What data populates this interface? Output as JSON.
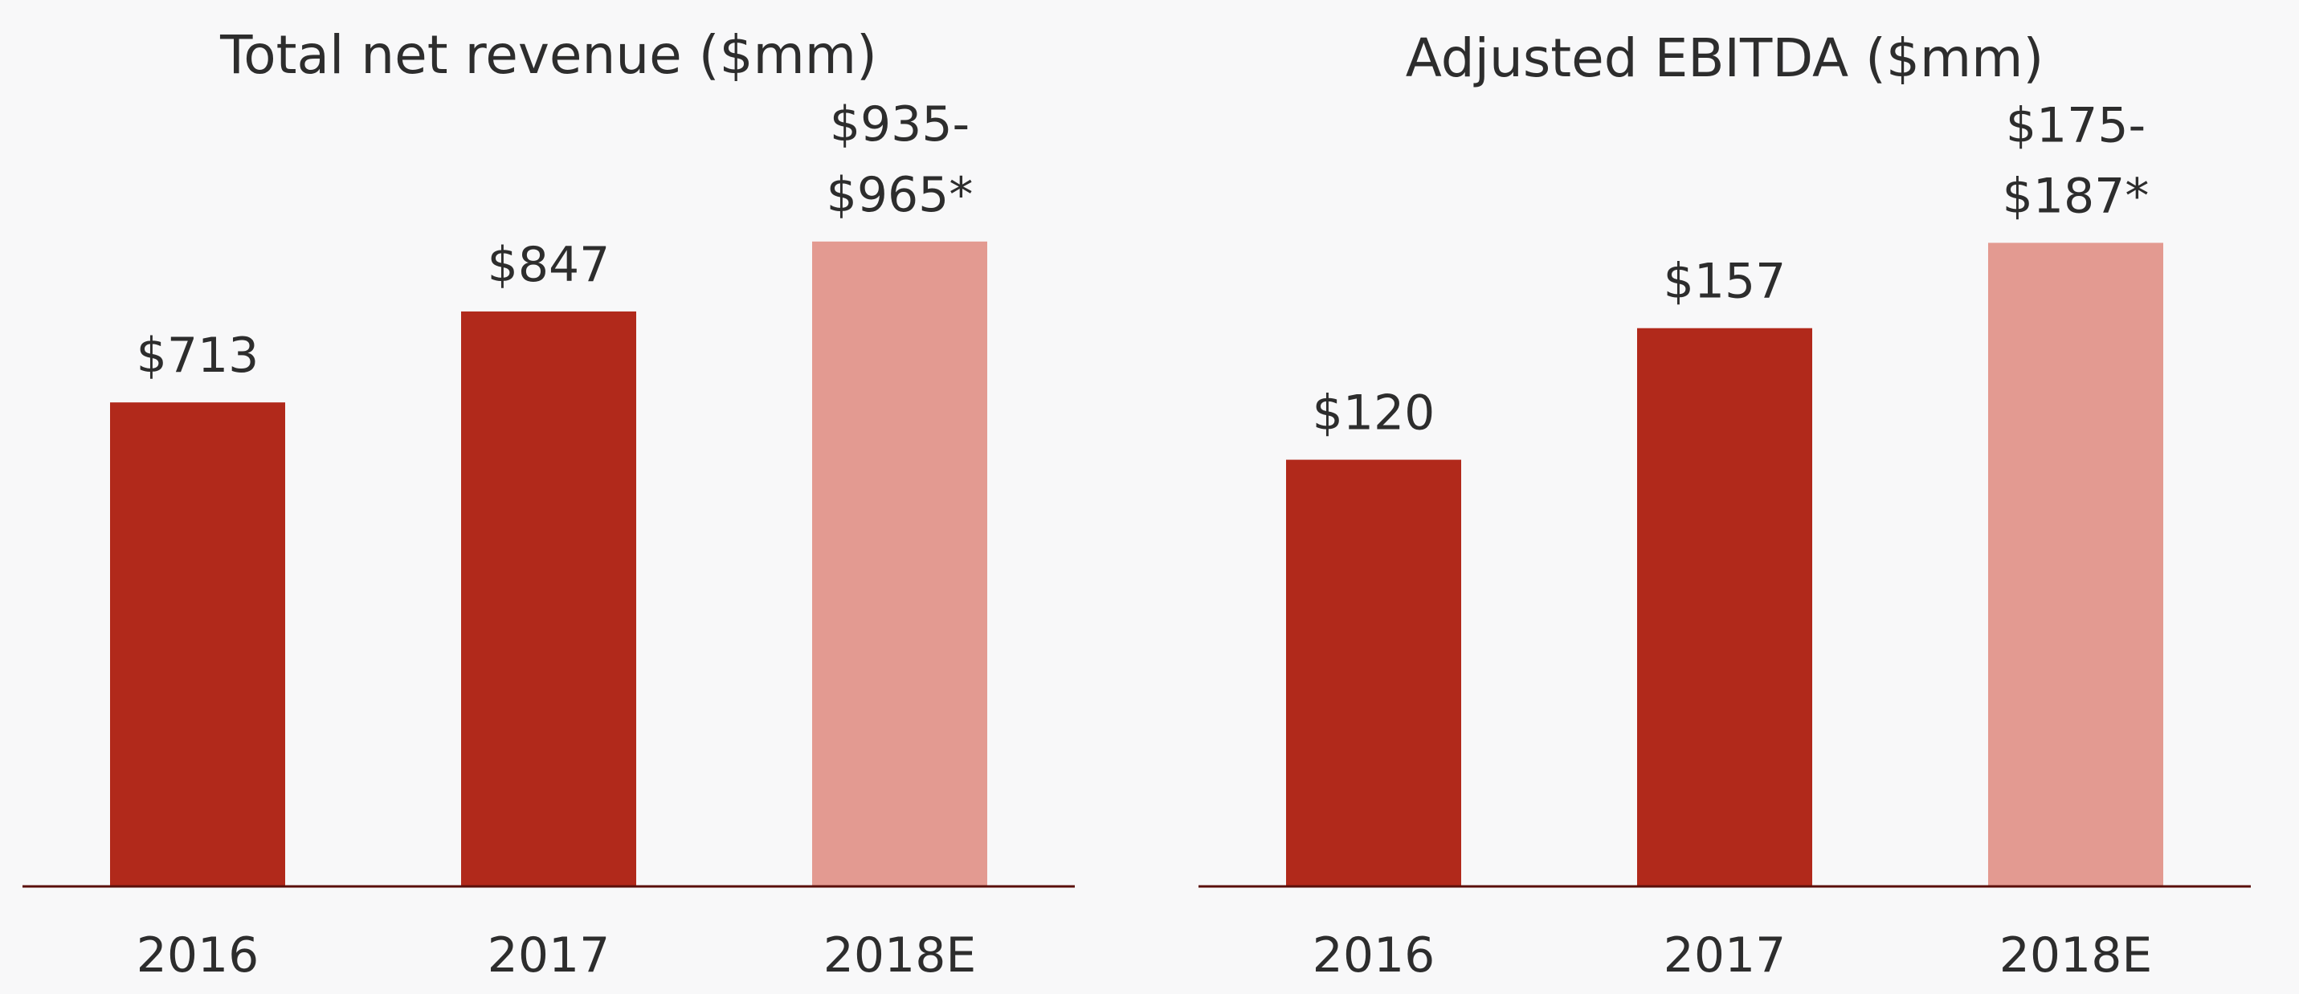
{
  "chart_data": [
    {
      "type": "bar",
      "title": "Total net revenue ($mm)",
      "categories": [
        "2016",
        "2017",
        "2018E"
      ],
      "values": [
        713,
        847,
        950
      ],
      "value_labels": [
        [
          "$713"
        ],
        [
          "$847"
        ],
        [
          "$935-",
          "$965*"
        ]
      ],
      "bar_colors": [
        "#b1291b",
        "#b1291b",
        "#e39a91"
      ],
      "axis_color": "#5a0f0a",
      "ylim": [
        0,
        1100
      ],
      "xlabel": "",
      "ylabel": "",
      "grid": false,
      "legend": "none"
    },
    {
      "type": "bar",
      "title": "Adjusted EBITDA ($mm)",
      "categories": [
        "2016",
        "2017",
        "2018E"
      ],
      "values": [
        120,
        157,
        181
      ],
      "value_labels": [
        [
          "$120"
        ],
        [
          "$157"
        ],
        [
          "$175-",
          "$187*"
        ]
      ],
      "bar_colors": [
        "#b1291b",
        "#b1291b",
        "#e39a91"
      ],
      "axis_color": "#5a0f0a",
      "ylim": [
        0,
        210
      ],
      "xlabel": "",
      "ylabel": "",
      "grid": false,
      "legend": "none"
    }
  ]
}
